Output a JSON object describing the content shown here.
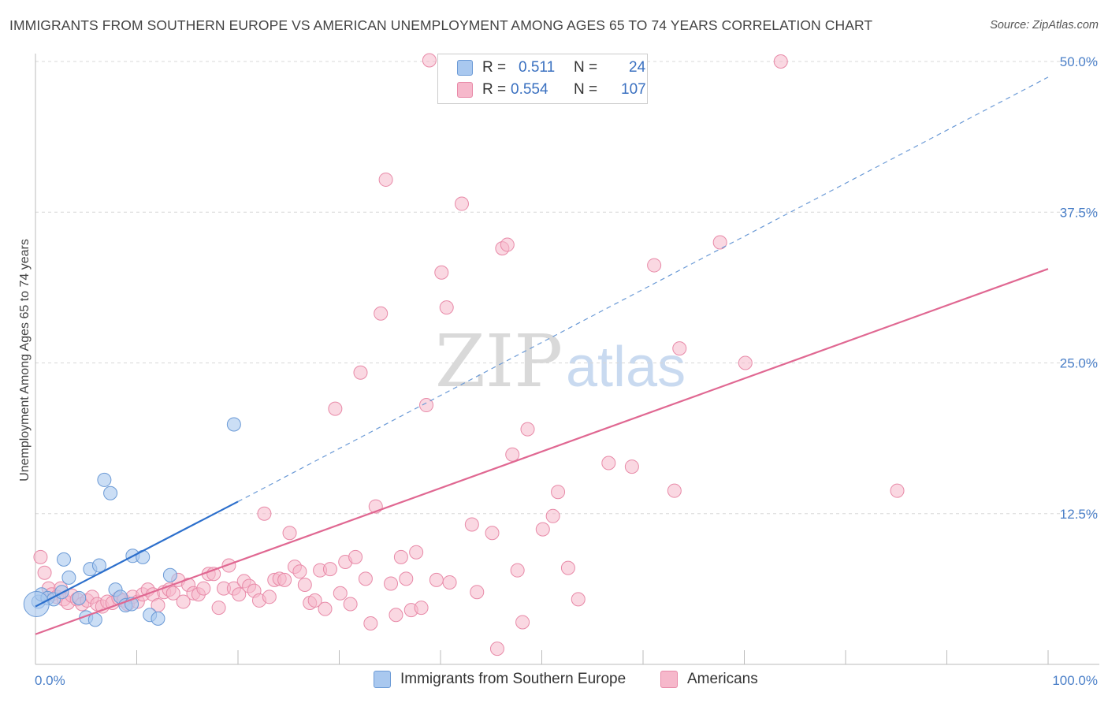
{
  "title": "IMMIGRANTS FROM SOUTHERN EUROPE VS AMERICAN UNEMPLOYMENT AMONG AGES 65 TO 74 YEARS CORRELATION CHART",
  "source": "Source: ZipAtlas.com",
  "watermark": {
    "zip": "ZIP",
    "atlas": "atlas"
  },
  "colors": {
    "blue_fill": "#a9c8ef",
    "blue_stroke": "#6b9ad6",
    "blue_line": "#2c6fcc",
    "pink_fill": "#f6b8cb",
    "pink_stroke": "#e88aa8",
    "pink_line": "#e06892",
    "grid": "#d8d8d8",
    "tick_text": "#4a7fc8"
  },
  "legend_top": {
    "rows": [
      {
        "r_label": "R =",
        "r_value": "0.511",
        "n_label": "N =",
        "n_value": "24",
        "series": "blue"
      },
      {
        "r_label": "R =",
        "r_value": "0.554",
        "n_label": "N =",
        "n_value": "107",
        "series": "pink"
      }
    ]
  },
  "legend_bottom": [
    {
      "label": "Immigrants from Southern Europe",
      "series": "blue"
    },
    {
      "label": "Americans",
      "series": "pink"
    }
  ],
  "chart_data": {
    "type": "scatter",
    "title": "IMMIGRANTS FROM SOUTHERN EUROPE VS AMERICAN UNEMPLOYMENT AMONG AGES 65 TO 74 YEARS CORRELATION CHART",
    "xlabel": "",
    "ylabel": "Unemployment Among Ages 65 to 74 years",
    "xlim": [
      0,
      100
    ],
    "ylim": [
      0,
      50
    ],
    "x_tick_labels": [
      "0.0%",
      "100.0%"
    ],
    "y_ticks": [
      12.5,
      25.0,
      37.5,
      50.0
    ],
    "y_tick_labels": [
      "12.5%",
      "25.0%",
      "37.5%",
      "50.0%"
    ],
    "grid": true,
    "series": [
      {
        "name": "Immigrants from Southern Europe",
        "color": "blue",
        "r": 0.511,
        "n": 24,
        "trend": {
          "x0": 0,
          "y0": 4.8,
          "x1": 20,
          "y1": 13.5,
          "dashed_to_x": 100,
          "dashed_to_y": 48.7
        },
        "points": [
          [
            0.3,
            5.2
          ],
          [
            0.6,
            5.8
          ],
          [
            1.2,
            5.5
          ],
          [
            1.8,
            5.4
          ],
          [
            2.6,
            6.0
          ],
          [
            2.8,
            8.7
          ],
          [
            3.3,
            7.2
          ],
          [
            4.3,
            5.5
          ],
          [
            5.0,
            3.9
          ],
          [
            5.4,
            7.9
          ],
          [
            5.9,
            3.7
          ],
          [
            6.3,
            8.2
          ],
          [
            6.8,
            15.3
          ],
          [
            7.4,
            14.2
          ],
          [
            7.9,
            6.2
          ],
          [
            8.4,
            5.6
          ],
          [
            8.9,
            4.9
          ],
          [
            9.5,
            5.0
          ],
          [
            9.6,
            9.0
          ],
          [
            10.6,
            8.9
          ],
          [
            11.3,
            4.1
          ],
          [
            12.1,
            3.8
          ],
          [
            13.3,
            7.4
          ],
          [
            19.6,
            19.9
          ]
        ],
        "highlight_point": [
          0.1,
          5.0
        ]
      },
      {
        "name": "Americans",
        "color": "pink",
        "r": 0.554,
        "n": 107,
        "trend": {
          "x0": 0,
          "y0": 2.5,
          "x1": 100,
          "y1": 32.8
        },
        "points": [
          [
            0.5,
            8.9
          ],
          [
            0.9,
            7.6
          ],
          [
            1.3,
            6.3
          ],
          [
            1.6,
            5.8
          ],
          [
            2.1,
            5.6
          ],
          [
            2.5,
            6.3
          ],
          [
            2.8,
            5.4
          ],
          [
            3.2,
            5.1
          ],
          [
            3.6,
            5.7
          ],
          [
            4.1,
            5.4
          ],
          [
            4.6,
            5.0
          ],
          [
            5.1,
            5.3
          ],
          [
            5.6,
            5.6
          ],
          [
            6.1,
            5.0
          ],
          [
            6.6,
            4.8
          ],
          [
            7.1,
            5.2
          ],
          [
            7.6,
            5.1
          ],
          [
            8.2,
            5.5
          ],
          [
            8.7,
            5.3
          ],
          [
            9.1,
            5.0
          ],
          [
            9.6,
            5.6
          ],
          [
            10.1,
            5.2
          ],
          [
            10.6,
            5.8
          ],
          [
            11.1,
            6.2
          ],
          [
            11.6,
            5.8
          ],
          [
            12.1,
            4.9
          ],
          [
            12.7,
            6.0
          ],
          [
            13.2,
            6.2
          ],
          [
            13.6,
            5.9
          ],
          [
            14.1,
            7.0
          ],
          [
            14.6,
            5.2
          ],
          [
            15.1,
            6.6
          ],
          [
            15.6,
            5.9
          ],
          [
            16.1,
            5.8
          ],
          [
            16.6,
            6.3
          ],
          [
            17.1,
            7.5
          ],
          [
            17.6,
            7.5
          ],
          [
            18.1,
            4.7
          ],
          [
            18.6,
            6.3
          ],
          [
            19.1,
            8.2
          ],
          [
            19.6,
            6.3
          ],
          [
            20.1,
            5.8
          ],
          [
            20.6,
            6.9
          ],
          [
            21.1,
            6.5
          ],
          [
            21.6,
            6.1
          ],
          [
            22.1,
            5.3
          ],
          [
            22.6,
            12.5
          ],
          [
            23.1,
            5.6
          ],
          [
            23.6,
            7.0
          ],
          [
            24.1,
            7.1
          ],
          [
            24.6,
            7.0
          ],
          [
            25.1,
            10.9
          ],
          [
            25.6,
            8.1
          ],
          [
            26.1,
            7.7
          ],
          [
            26.6,
            6.6
          ],
          [
            27.1,
            5.1
          ],
          [
            27.6,
            5.3
          ],
          [
            28.1,
            7.8
          ],
          [
            28.6,
            4.6
          ],
          [
            29.1,
            7.9
          ],
          [
            29.6,
            21.2
          ],
          [
            30.1,
            5.9
          ],
          [
            30.6,
            8.5
          ],
          [
            31.1,
            5.0
          ],
          [
            31.6,
            8.9
          ],
          [
            32.1,
            24.2
          ],
          [
            32.6,
            7.1
          ],
          [
            33.1,
            3.4
          ],
          [
            33.6,
            13.1
          ],
          [
            34.1,
            29.1
          ],
          [
            34.6,
            40.2
          ],
          [
            35.1,
            6.7
          ],
          [
            35.6,
            4.1
          ],
          [
            36.1,
            8.9
          ],
          [
            36.6,
            7.1
          ],
          [
            37.1,
            4.5
          ],
          [
            37.6,
            9.3
          ],
          [
            38.1,
            4.7
          ],
          [
            38.6,
            21.5
          ],
          [
            38.9,
            50.1
          ],
          [
            39.6,
            7.0
          ],
          [
            40.1,
            32.5
          ],
          [
            40.6,
            29.6
          ],
          [
            40.9,
            6.8
          ],
          [
            42.1,
            38.2
          ],
          [
            43.1,
            11.6
          ],
          [
            43.6,
            6.0
          ],
          [
            45.1,
            10.9
          ],
          [
            45.6,
            1.3
          ],
          [
            46.1,
            34.5
          ],
          [
            46.6,
            34.8
          ],
          [
            47.1,
            17.4
          ],
          [
            47.6,
            7.8
          ],
          [
            48.1,
            3.5
          ],
          [
            48.6,
            19.5
          ],
          [
            50.1,
            11.2
          ],
          [
            51.1,
            12.3
          ],
          [
            51.6,
            14.3
          ],
          [
            52.6,
            8.0
          ],
          [
            53.6,
            5.4
          ],
          [
            56.6,
            16.7
          ],
          [
            58.9,
            16.4
          ],
          [
            61.1,
            33.1
          ],
          [
            63.1,
            14.4
          ],
          [
            63.6,
            26.2
          ],
          [
            67.6,
            35.0
          ],
          [
            70.1,
            25.0
          ],
          [
            73.6,
            50.0
          ],
          [
            85.1,
            14.4
          ]
        ]
      }
    ]
  }
}
